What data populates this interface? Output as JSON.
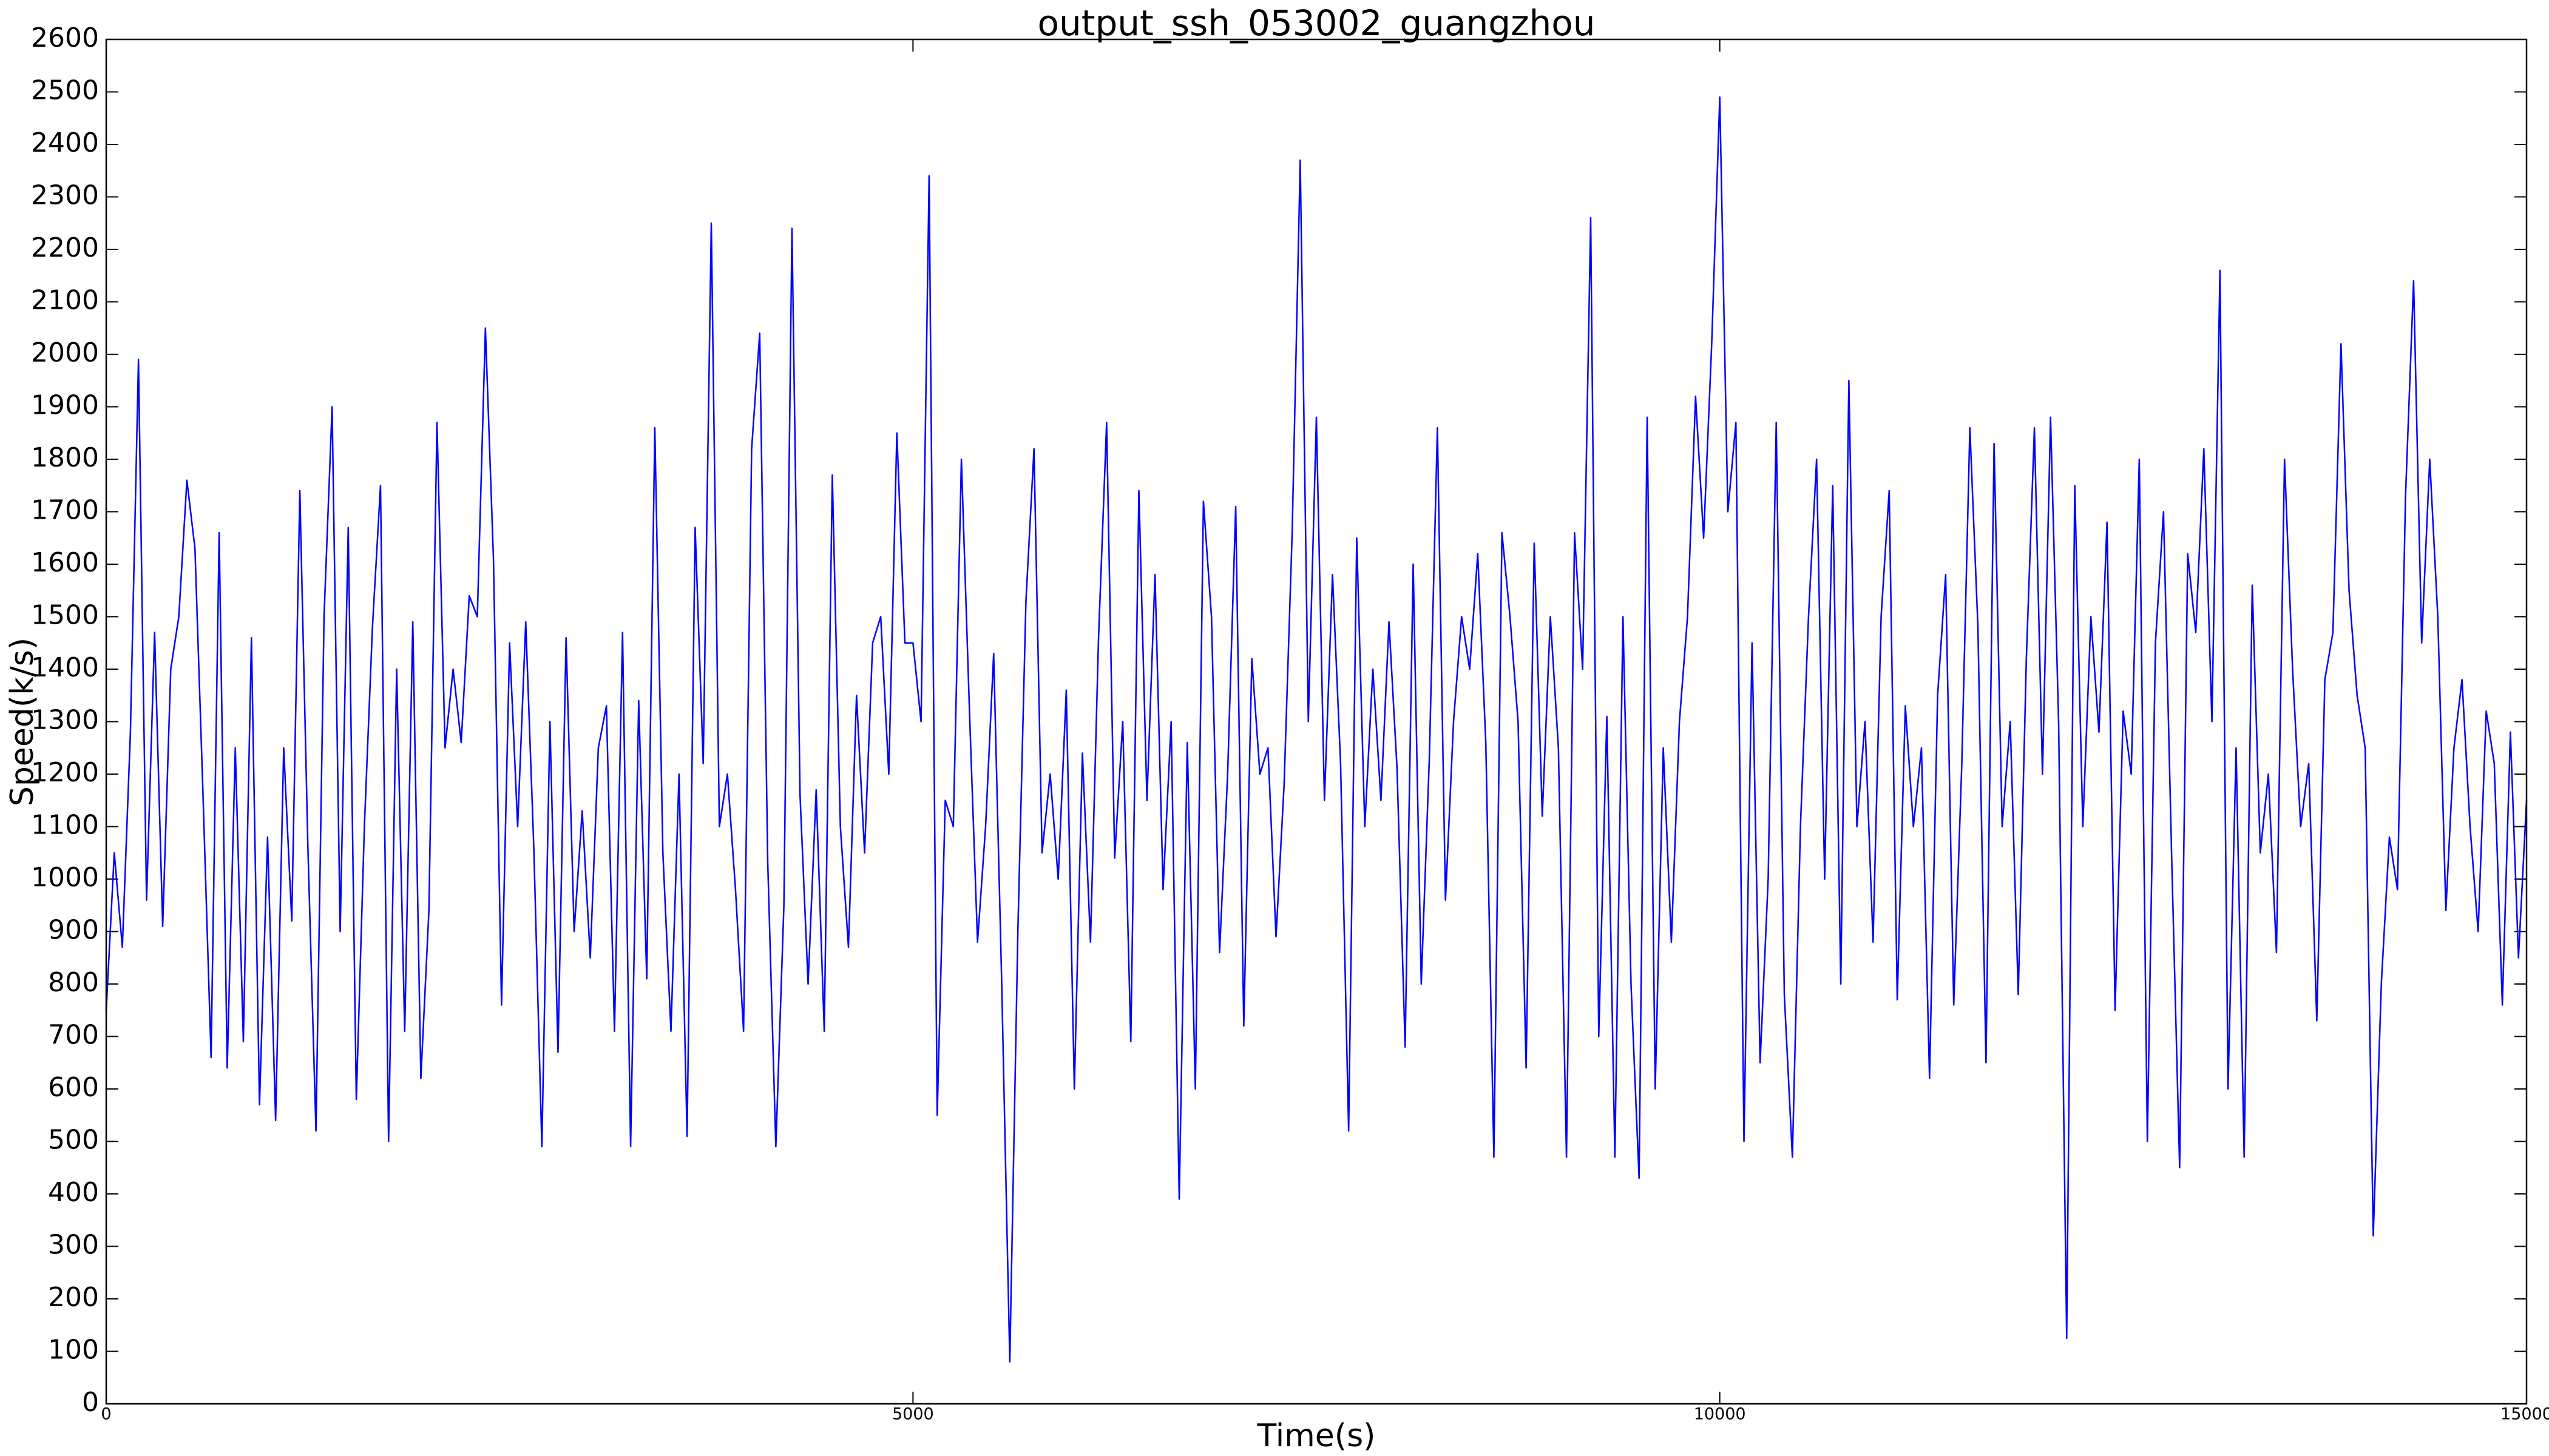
{
  "chart_data": {
    "type": "line",
    "title": "output_ssh_053002_guangzhou",
    "x_label": "Time(s)",
    "y_label": "Speed(k/s)",
    "color": "#0000ff",
    "xlim": [
      0,
      15000
    ],
    "xticks": [
      0,
      5000,
      10000,
      15000
    ],
    "ylim": [
      0,
      2600
    ],
    "yticks": [
      0,
      100,
      200,
      300,
      400,
      500,
      600,
      700,
      800,
      900,
      1000,
      1100,
      1200,
      1300,
      1400,
      1500,
      1600,
      1700,
      1800,
      1900,
      2000,
      2100,
      2200,
      2300,
      2400,
      2500,
      2600
    ],
    "x": [
      0,
      50,
      100,
      150,
      200,
      250,
      300,
      350,
      400,
      450,
      500,
      550,
      600,
      650,
      700,
      750,
      800,
      850,
      900,
      950,
      1000,
      1050,
      1100,
      1150,
      1200,
      1250,
      1300,
      1350,
      1400,
      1450,
      1500,
      1550,
      1600,
      1650,
      1700,
      1750,
      1800,
      1850,
      1900,
      1950,
      2000,
      2050,
      2100,
      2150,
      2200,
      2250,
      2300,
      2350,
      2400,
      2450,
      2500,
      2550,
      2600,
      2650,
      2700,
      2750,
      2800,
      2850,
      2900,
      2950,
      3000,
      3050,
      3100,
      3150,
      3200,
      3250,
      3300,
      3350,
      3400,
      3450,
      3500,
      3550,
      3600,
      3650,
      3700,
      3750,
      3800,
      3850,
      3900,
      3950,
      4000,
      4050,
      4100,
      4150,
      4200,
      4250,
      4300,
      4350,
      4400,
      4450,
      4500,
      4550,
      4600,
      4650,
      4700,
      4750,
      4800,
      4850,
      4900,
      4950,
      5000,
      5050,
      5100,
      5150,
      5200,
      5250,
      5300,
      5350,
      5400,
      5450,
      5500,
      5550,
      5600,
      5650,
      5700,
      5750,
      5800,
      5850,
      5900,
      5950,
      6000,
      6050,
      6100,
      6150,
      6200,
      6250,
      6300,
      6350,
      6400,
      6450,
      6500,
      6550,
      6600,
      6650,
      6700,
      6750,
      6800,
      6850,
      6900,
      6950,
      7000,
      7050,
      7100,
      7150,
      7200,
      7250,
      7300,
      7350,
      7400,
      7450,
      7500,
      7550,
      7600,
      7650,
      7700,
      7750,
      7800,
      7850,
      7900,
      7950,
      8000,
      8050,
      8100,
      8150,
      8200,
      8250,
      8300,
      8350,
      8400,
      8450,
      8500,
      8550,
      8600,
      8650,
      8700,
      8750,
      8800,
      8850,
      8900,
      8950,
      9000,
      9050,
      9100,
      9150,
      9200,
      9250,
      9300,
      9350,
      9400,
      9450,
      9500,
      9550,
      9600,
      9650,
      9700,
      9750,
      9800,
      9850,
      9900,
      9950,
      10000,
      10050,
      10100,
      10150,
      10200,
      10250,
      10300,
      10350,
      10400,
      10450,
      10500,
      10550,
      10600,
      10650,
      10700,
      10750,
      10800,
      10850,
      10900,
      10950,
      11000,
      11050,
      11100,
      11150,
      11200,
      11250,
      11300,
      11350,
      11400,
      11450,
      11500,
      11550,
      11600,
      11650,
      11700,
      11750,
      11800,
      11850,
      11900,
      11950,
      12000,
      12050,
      12100,
      12150,
      12200,
      12250,
      12300,
      12350,
      12400,
      12450,
      12500,
      12550,
      12600,
      12650,
      12700,
      12750,
      12800,
      12850,
      12900,
      12950,
      13000,
      13050,
      13100,
      13150,
      13200,
      13250,
      13300,
      13350,
      13400,
      13450,
      13500,
      13550,
      13600,
      13650,
      13700,
      13750,
      13800,
      13850,
      13900,
      13950,
      14000,
      14050,
      14100,
      14150,
      14200,
      14250,
      14300,
      14350,
      14400,
      14450,
      14500,
      14550,
      14600,
      14650,
      14700,
      14750,
      14800,
      14850,
      14900,
      14950,
      15000
    ],
    "values": [
      750,
      1050,
      870,
      1280,
      1990,
      960,
      1470,
      910,
      1400,
      1500,
      1760,
      1630,
      1160,
      660,
      1660,
      640,
      1250,
      690,
      1460,
      570,
      1080,
      540,
      1250,
      920,
      1740,
      1060,
      520,
      1500,
      1900,
      900,
      1670,
      580,
      1100,
      1480,
      1750,
      500,
      1400,
      710,
      1490,
      620,
      940,
      1870,
      1250,
      1400,
      1260,
      1540,
      1500,
      2050,
      1610,
      760,
      1450,
      1100,
      1490,
      1060,
      490,
      1300,
      670,
      1460,
      900,
      1130,
      850,
      1250,
      1330,
      710,
      1470,
      490,
      1340,
      810,
      1860,
      1050,
      710,
      1200,
      510,
      1670,
      1220,
      2250,
      1100,
      1200,
      980,
      710,
      1820,
      2040,
      1030,
      490,
      950,
      2240,
      1160,
      800,
      1170,
      710,
      1770,
      1100,
      870,
      1350,
      1050,
      1450,
      1500,
      1200,
      1850,
      1450,
      1450,
      1300,
      2340,
      550,
      1150,
      1100,
      1800,
      1320,
      880,
      1100,
      1430,
      800,
      80,
      900,
      1530,
      1820,
      1050,
      1200,
      1000,
      1360,
      600,
      1240,
      880,
      1460,
      1870,
      1040,
      1300,
      690,
      1740,
      1150,
      1580,
      980,
      1300,
      390,
      1260,
      600,
      1720,
      1500,
      860,
      1200,
      1710,
      720,
      1420,
      1200,
      1250,
      890,
      1180,
      1660,
      2370,
      1300,
      1880,
      1150,
      1580,
      1220,
      520,
      1650,
      1100,
      1400,
      1150,
      1490,
      1210,
      680,
      1600,
      800,
      1230,
      1860,
      960,
      1300,
      1500,
      1400,
      1620,
      1260,
      470,
      1660,
      1500,
      1300,
      640,
      1640,
      1120,
      1500,
      1250,
      470,
      1660,
      1400,
      2260,
      700,
      1310,
      470,
      1500,
      800,
      430,
      1880,
      600,
      1250,
      880,
      1300,
      1500,
      1920,
      1650,
      2020,
      2490,
      1700,
      1870,
      500,
      1450,
      650,
      1000,
      1870,
      780,
      470,
      1100,
      1500,
      1800,
      1000,
      1750,
      800,
      1950,
      1100,
      1300,
      880,
      1500,
      1740,
      770,
      1330,
      1100,
      1250,
      620,
      1350,
      1580,
      760,
      1220,
      1860,
      1480,
      650,
      1830,
      1100,
      1300,
      780,
      1420,
      1860,
      1200,
      1880,
      1300,
      125,
      1750,
      1100,
      1500,
      1280,
      1680,
      750,
      1320,
      1200,
      1800,
      500,
      1450,
      1700,
      1050,
      450,
      1620,
      1470,
      1820,
      1300,
      2160,
      600,
      1250,
      470,
      1560,
      1050,
      1200,
      860,
      1800,
      1400,
      1100,
      1220,
      730,
      1380,
      1470,
      2020,
      1550,
      1350,
      1250,
      320,
      800,
      1080,
      980,
      1730,
      2140,
      1450,
      1800,
      1500,
      940,
      1250,
      1380,
      1100,
      900,
      1320,
      1220,
      760,
      1280,
      850,
      1150
    ]
  }
}
